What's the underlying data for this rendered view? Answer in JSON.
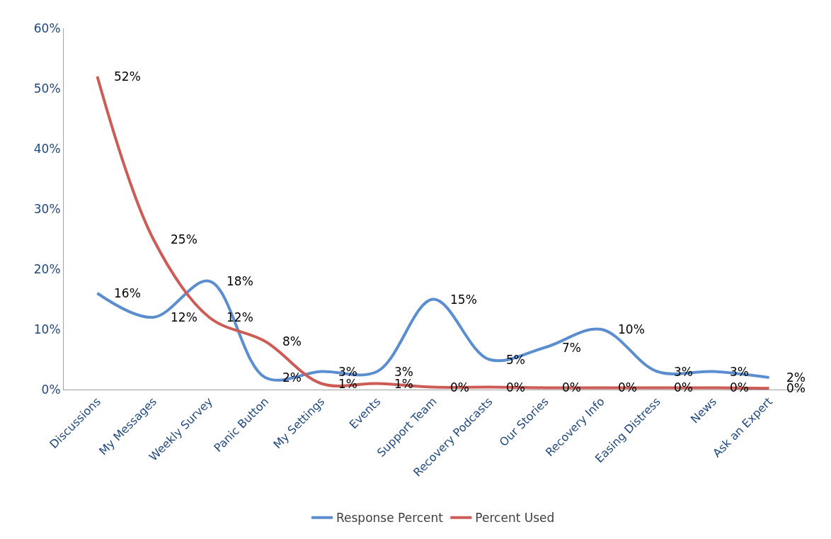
{
  "chart_data": {
    "type": "line",
    "categories": [
      "Discussions",
      "My Messages",
      "Weekly Survey",
      "Panic Button",
      "My Settings",
      "Events",
      "Support Team",
      "Recovery Podcasts",
      "Our Stories",
      "Recovery Info",
      "Easing Distress",
      "News",
      "Ask an Expert"
    ],
    "series": [
      {
        "name": "Response Percent",
        "color": "#5b8ecf",
        "values": [
          16,
          12,
          18,
          2,
          3,
          3,
          15,
          5,
          7,
          10,
          3,
          3,
          2
        ],
        "value_labels": [
          "16%",
          "12%",
          "18%",
          "2%",
          "3%",
          "3%",
          "15%",
          "5%",
          "7%",
          "10%",
          "3%",
          "3%",
          "2%"
        ]
      },
      {
        "name": "Percent Used",
        "color": "#cd5c57",
        "values": [
          52,
          25,
          12,
          8,
          1,
          1,
          0.4,
          0.4,
          0.3,
          0.3,
          0.3,
          0.3,
          0.2
        ],
        "value_labels": [
          "52%",
          "25%",
          "12%",
          "8%",
          "1%",
          "1%",
          "0%",
          "0%",
          "0%",
          "0%",
          "0%",
          "0%",
          "0%"
        ]
      }
    ],
    "ylim": [
      0,
      60
    ],
    "yticks": [
      {
        "value": 0,
        "label": "0%"
      },
      {
        "value": 10,
        "label": "10%"
      },
      {
        "value": 20,
        "label": "20%"
      },
      {
        "value": 30,
        "label": "30%"
      },
      {
        "value": 40,
        "label": "40%"
      },
      {
        "value": 50,
        "label": "50%"
      },
      {
        "value": 60,
        "label": "60%"
      }
    ],
    "legend": "bottom",
    "marker": "none",
    "line_style": "solid"
  }
}
